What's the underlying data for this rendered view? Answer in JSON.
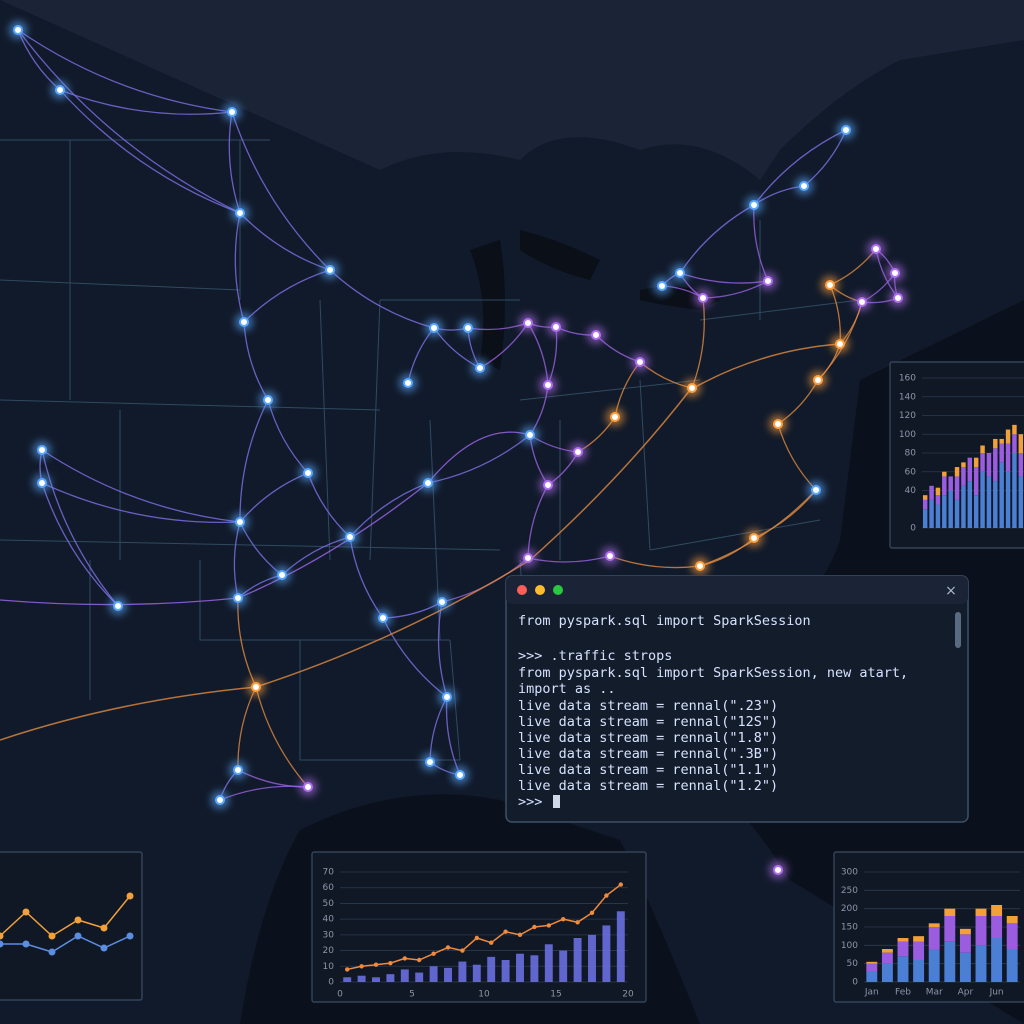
{
  "terminal": {
    "lines": [
      "from pyspark.sql import SparkSession",
      ">>> .traffic strops",
      "from pyspark.sql import SparkSession, new atart,",
      "import as ..",
      "live data stream = rennal(\".23\")",
      "live data stream = rennal(\"12S\")",
      "live data stream = rennal(\"1.8\")",
      "live data stream = rennal(\".3B\")",
      "live data stream = rennal(\"1.1\")",
      "live data stream = rennal(\"1.2\")",
      ">>>"
    ],
    "close": "×"
  },
  "chart_data": [
    {
      "type": "bar",
      "ylim": [
        0,
        160
      ],
      "yticks": [
        0,
        40,
        60,
        80,
        100,
        120,
        140,
        160
      ],
      "series": [
        {
          "color": "#4a7fd4",
          "values": [
            20,
            30,
            25,
            35,
            40,
            30,
            45,
            50,
            35,
            60,
            55,
            50,
            70,
            60,
            80,
            55
          ]
        },
        {
          "color": "#9b5de0",
          "values": [
            10,
            15,
            10,
            20,
            15,
            25,
            20,
            25,
            30,
            20,
            25,
            35,
            20,
            30,
            20,
            25
          ]
        },
        {
          "color": "#f2a13a",
          "values": [
            5,
            0,
            8,
            5,
            0,
            10,
            5,
            0,
            10,
            8,
            0,
            10,
            5,
            15,
            10,
            20
          ]
        }
      ]
    },
    {
      "type": "combo",
      "xlim": [
        0,
        20
      ],
      "xticks": [
        0,
        5,
        10,
        15,
        20
      ],
      "ylim": [
        0,
        70
      ],
      "yticks": [
        0,
        10,
        20,
        30,
        40,
        50,
        60,
        70
      ],
      "x": [
        0.5,
        1.5,
        2.5,
        3.5,
        4.5,
        5.5,
        6.5,
        7.5,
        8.5,
        9.5,
        10.5,
        11.5,
        12.5,
        13.5,
        14.5,
        15.5,
        16.5,
        17.5,
        18.5,
        19.5
      ],
      "bars": {
        "color": "#6a6fe0",
        "values": [
          3,
          4,
          3,
          5,
          8,
          6,
          10,
          9,
          13,
          11,
          16,
          14,
          18,
          17,
          24,
          20,
          28,
          30,
          36,
          45
        ]
      },
      "line": {
        "color": "#f08a3c",
        "values": [
          8,
          10,
          11,
          12,
          15,
          14,
          18,
          22,
          20,
          28,
          25,
          32,
          30,
          35,
          36,
          40,
          38,
          44,
          55,
          62
        ]
      }
    },
    {
      "type": "bar",
      "ylim": [
        0,
        300
      ],
      "yticks": [
        0,
        50,
        100,
        150,
        200,
        250,
        300
      ],
      "categories": [
        "Jan",
        null,
        "Feb",
        null,
        "Mar",
        null,
        "Apr",
        null,
        "Jun",
        null
      ],
      "series": [
        {
          "color": "#4a7fd4",
          "values": [
            30,
            50,
            70,
            60,
            90,
            110,
            80,
            100,
            120,
            90
          ]
        },
        {
          "color": "#9b5de0",
          "values": [
            20,
            30,
            40,
            50,
            60,
            70,
            50,
            80,
            60,
            70
          ]
        },
        {
          "color": "#f2a13a",
          "values": [
            5,
            10,
            10,
            15,
            10,
            20,
            15,
            20,
            30,
            20
          ]
        }
      ]
    },
    {
      "type": "line",
      "ylim": [
        0,
        10
      ],
      "series": [
        {
          "color": "#f2a13a",
          "values": [
            3,
            6,
            3,
            5,
            4,
            8
          ]
        },
        {
          "color": "#5b8de0",
          "values": [
            2,
            2,
            1,
            3,
            1.5,
            3
          ]
        }
      ]
    }
  ]
}
